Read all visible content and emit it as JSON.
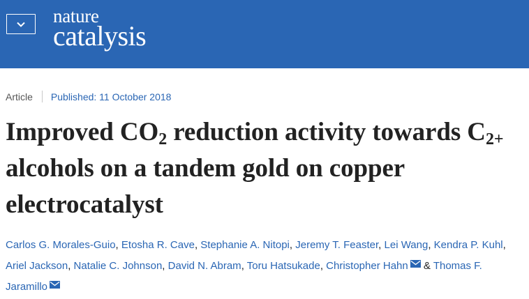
{
  "header": {
    "menu_icon": "chevron-down-icon",
    "logo_line1": "nature",
    "logo_line2": "catalysis",
    "background_color": "#2a66b4"
  },
  "article": {
    "type": "Article",
    "published": "Published: 11 October 2018",
    "title": {
      "part1": "Improved CO",
      "sub1": "2",
      "part2": " reduction activity towards C",
      "sub2": "2+",
      "part3": " alcohols on a tandem gold on copper electrocatalyst"
    },
    "link_color": "#2a66b4",
    "authors": [
      {
        "name": "Carlos G. Morales-Guio",
        "sep": ", "
      },
      {
        "name": "Etosha R. Cave",
        "sep": ", "
      },
      {
        "name": "Stephanie A. Nitopi",
        "sep": ", "
      },
      {
        "name": "Jeremy T. Feaster",
        "sep": ", "
      },
      {
        "name": "Lei Wang",
        "sep": ", "
      },
      {
        "name": "Kendra P. Kuhl",
        "sep": ", "
      },
      {
        "name": "Ariel Jackson",
        "sep": ", "
      },
      {
        "name": "Natalie C. Johnson",
        "sep": ", "
      },
      {
        "name": "David N. Abram",
        "sep": ", "
      },
      {
        "name": "Toru Hatsukade",
        "sep": ", "
      },
      {
        "name": "Christopher Hahn",
        "sep": " & ",
        "corresponding": true
      },
      {
        "name": "Thomas F. Jaramillo",
        "sep": "",
        "corresponding": true
      }
    ]
  }
}
